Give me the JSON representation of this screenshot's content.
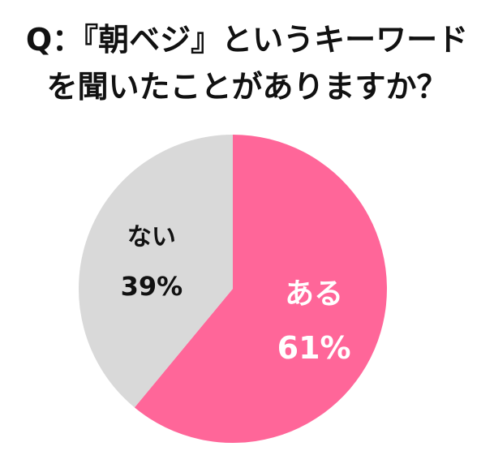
{
  "title": {
    "line1": "Q：『朝ベジ』というキーワード",
    "line2": "を聞いたことがありますか？"
  },
  "chart_data": {
    "type": "pie",
    "slices": [
      {
        "label": "ある",
        "value": 61,
        "value_label": "61%",
        "color": "#FF6699",
        "text_color": "#FFFFFF"
      },
      {
        "label": "ない",
        "value": 39,
        "value_label": "39%",
        "color": "#D9D9D9",
        "text_color": "#111111"
      }
    ],
    "start": "top",
    "direction": "clockwise"
  }
}
